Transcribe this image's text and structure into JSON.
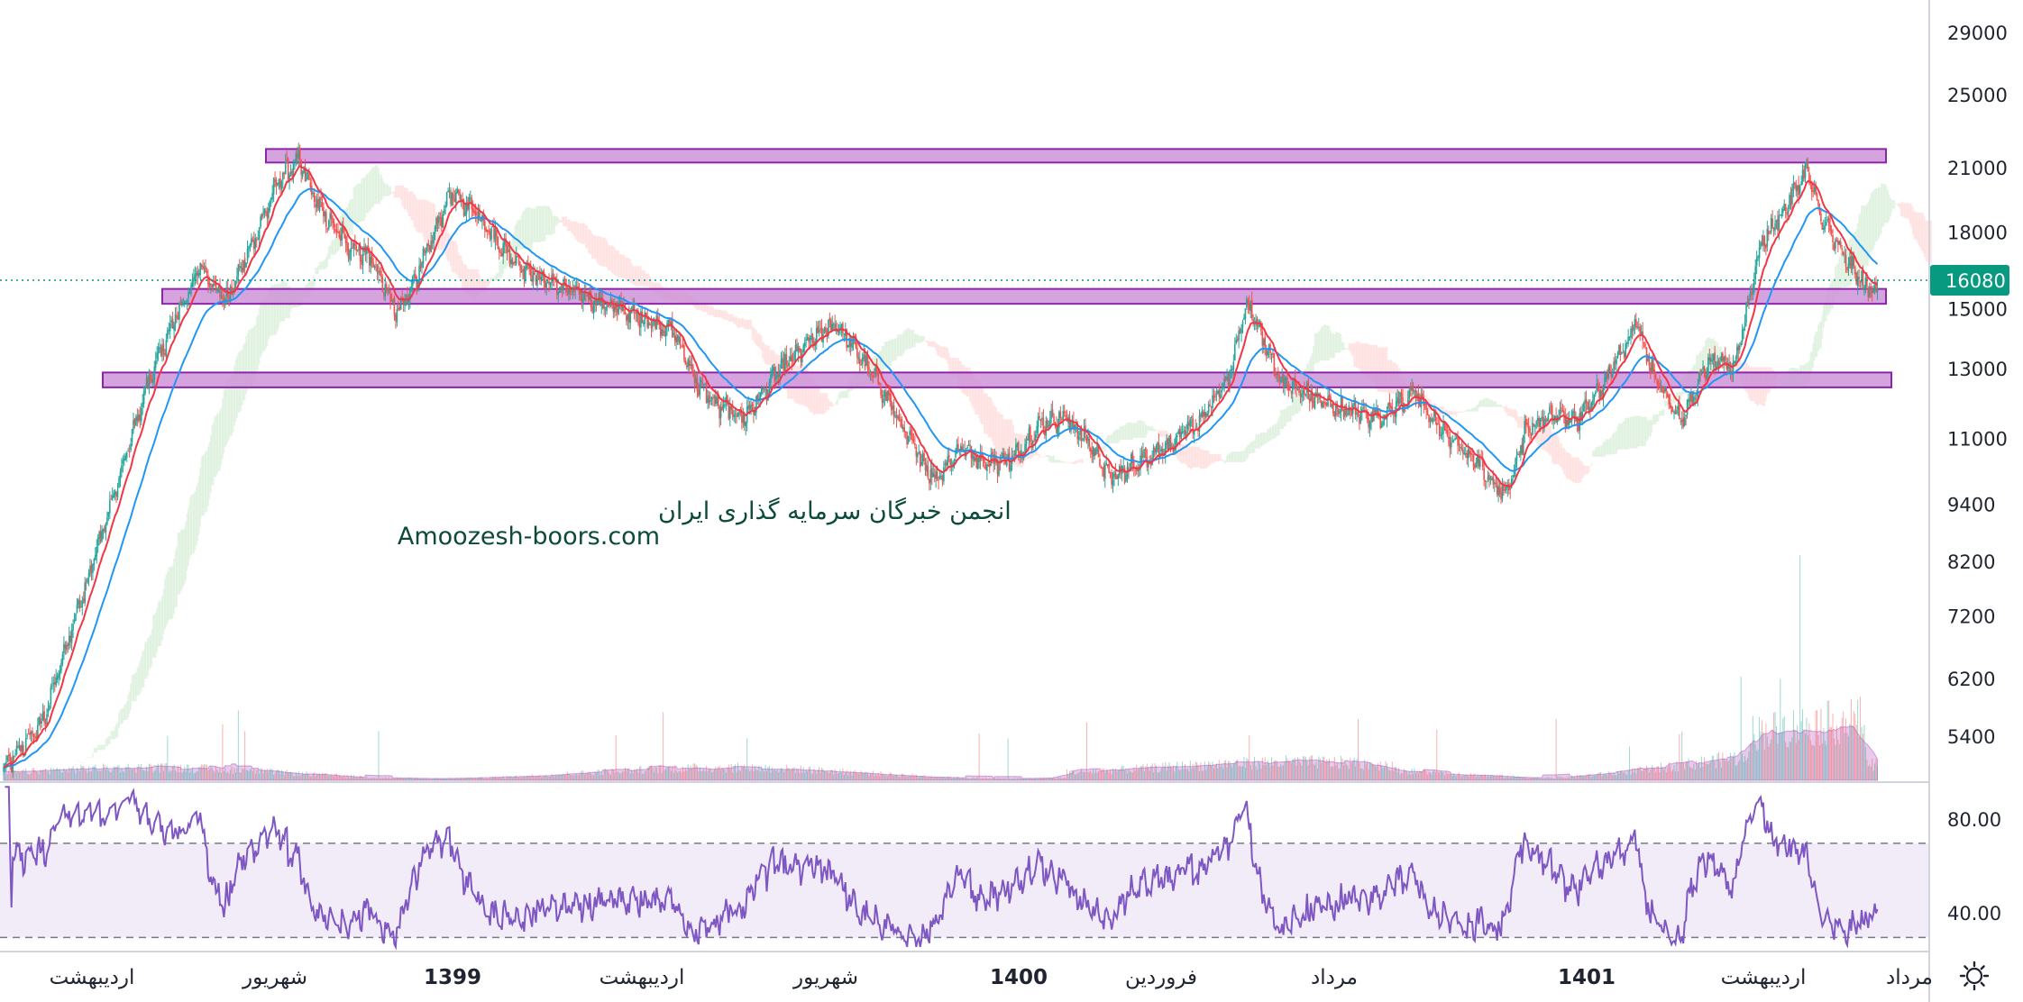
{
  "chart_data": [
    {
      "type": "candlestick",
      "title": "",
      "xlabel": "",
      "ylabel": "",
      "scale": "log",
      "ylim": [
        4900,
        32000
      ],
      "y_ticks": [
        29000,
        25000,
        21000,
        18000,
        15000,
        13000,
        11000,
        9400,
        8200,
        7200,
        6200,
        5400
      ],
      "y_tick_labels": [
        "29000",
        "25000",
        "21000",
        "18000",
        "15000",
        "13000",
        "11000",
        "9400",
        "8200",
        "7200",
        "6200",
        "5400"
      ],
      "last_price": 16080,
      "last_price_label": "16080",
      "x_labels": [
        "اردیبهشت",
        "شهریور",
        "1399",
        "اردیبهشت",
        "شهریور",
        "1400",
        "فروردین",
        "مرداد",
        "1401",
        "اردیبهشت",
        "مرداد"
      ],
      "x_labels_bold": [
        false,
        false,
        true,
        false,
        false,
        true,
        false,
        false,
        true,
        false,
        false
      ],
      "horizontal_zones": [
        {
          "low": 21300,
          "high": 22000
        },
        {
          "low": 15200,
          "high": 15750
        },
        {
          "low": 12450,
          "high": 12900
        }
      ],
      "indicators": [
        "EMA fast (red)",
        "EMA slow (blue)",
        "Ichimoku cloud",
        "Volume"
      ],
      "close_anchors": [
        [
          0,
          5000
        ],
        [
          30,
          5600
        ],
        [
          60,
          7600
        ],
        [
          90,
          10200
        ],
        [
          110,
          12600
        ],
        [
          130,
          14600
        ],
        [
          150,
          16600
        ],
        [
          170,
          15300
        ],
        [
          190,
          17600
        ],
        [
          210,
          20500
        ],
        [
          225,
          21400
        ],
        [
          240,
          19200
        ],
        [
          260,
          17600
        ],
        [
          280,
          17000
        ],
        [
          300,
          14800
        ],
        [
          320,
          16800
        ],
        [
          340,
          19800
        ],
        [
          360,
          19000
        ],
        [
          380,
          17400
        ],
        [
          400,
          16400
        ],
        [
          430,
          15700
        ],
        [
          470,
          15000
        ],
        [
          510,
          14300
        ],
        [
          530,
          12500
        ],
        [
          545,
          11900
        ],
        [
          565,
          11600
        ],
        [
          590,
          12900
        ],
        [
          615,
          13900
        ],
        [
          635,
          14500
        ],
        [
          650,
          13600
        ],
        [
          670,
          12400
        ],
        [
          690,
          11000
        ],
        [
          710,
          10000
        ],
        [
          730,
          10800
        ],
        [
          750,
          10400
        ],
        [
          770,
          10500
        ],
        [
          790,
          11400
        ],
        [
          810,
          11600
        ],
        [
          830,
          10800
        ],
        [
          845,
          10000
        ],
        [
          870,
          10500
        ],
        [
          895,
          11000
        ],
        [
          915,
          11600
        ],
        [
          935,
          12800
        ],
        [
          948,
          15300
        ],
        [
          960,
          14000
        ],
        [
          975,
          12600
        ],
        [
          995,
          12200
        ],
        [
          1020,
          11800
        ],
        [
          1050,
          11600
        ],
        [
          1075,
          12300
        ],
        [
          1095,
          11300
        ],
        [
          1120,
          10500
        ],
        [
          1145,
          9600
        ],
        [
          1160,
          11200
        ],
        [
          1180,
          11700
        ],
        [
          1200,
          11500
        ],
        [
          1220,
          12500
        ],
        [
          1245,
          14600
        ],
        [
          1260,
          12700
        ],
        [
          1280,
          11500
        ],
        [
          1300,
          13200
        ],
        [
          1320,
          13100
        ],
        [
          1340,
          17500
        ],
        [
          1360,
          19200
        ],
        [
          1375,
          21000
        ],
        [
          1385,
          18800
        ],
        [
          1400,
          17300
        ],
        [
          1420,
          15800
        ]
      ],
      "volume_peaks": [
        {
          "index": 1370,
          "value": 1.0
        },
        {
          "index": 1355,
          "value": 0.45
        },
        {
          "index": 1325,
          "value": 0.46
        },
        {
          "index": 1240,
          "value": 0.15
        },
        {
          "index": 950,
          "value": 0.2
        }
      ]
    },
    {
      "type": "line",
      "title": "",
      "ylim": [
        24,
        96
      ],
      "y_ticks": [
        80,
        40
      ],
      "y_tick_labels": [
        "80.00",
        "40.00"
      ],
      "upper_band": 70,
      "lower_band": 30,
      "series": [
        {
          "name": "",
          "color": "#7e57c2"
        }
      ]
    }
  ],
  "watermark": {
    "line1": "انجمن خبرگان سرمایه گذاری ایران",
    "line2": "Amoozesh-boors.com"
  },
  "settings_icon": "gear-icon",
  "colors": {
    "up": "#26a69a",
    "down": "#ef5350",
    "ema_fast": "#f23645",
    "ema_slow": "#2196f3",
    "zone_fill": "#ce93d8",
    "zone_stroke": "#8e24aa",
    "volume": "#ba68c8",
    "rsi": "#7e57c2",
    "rsi_band": "#ede7f6",
    "cloud_bull": "#4caf50",
    "cloud_bear": "#ff5252",
    "price_tag": "#089981",
    "last_price_line": "#089981",
    "grid": "#e0e3eb"
  }
}
